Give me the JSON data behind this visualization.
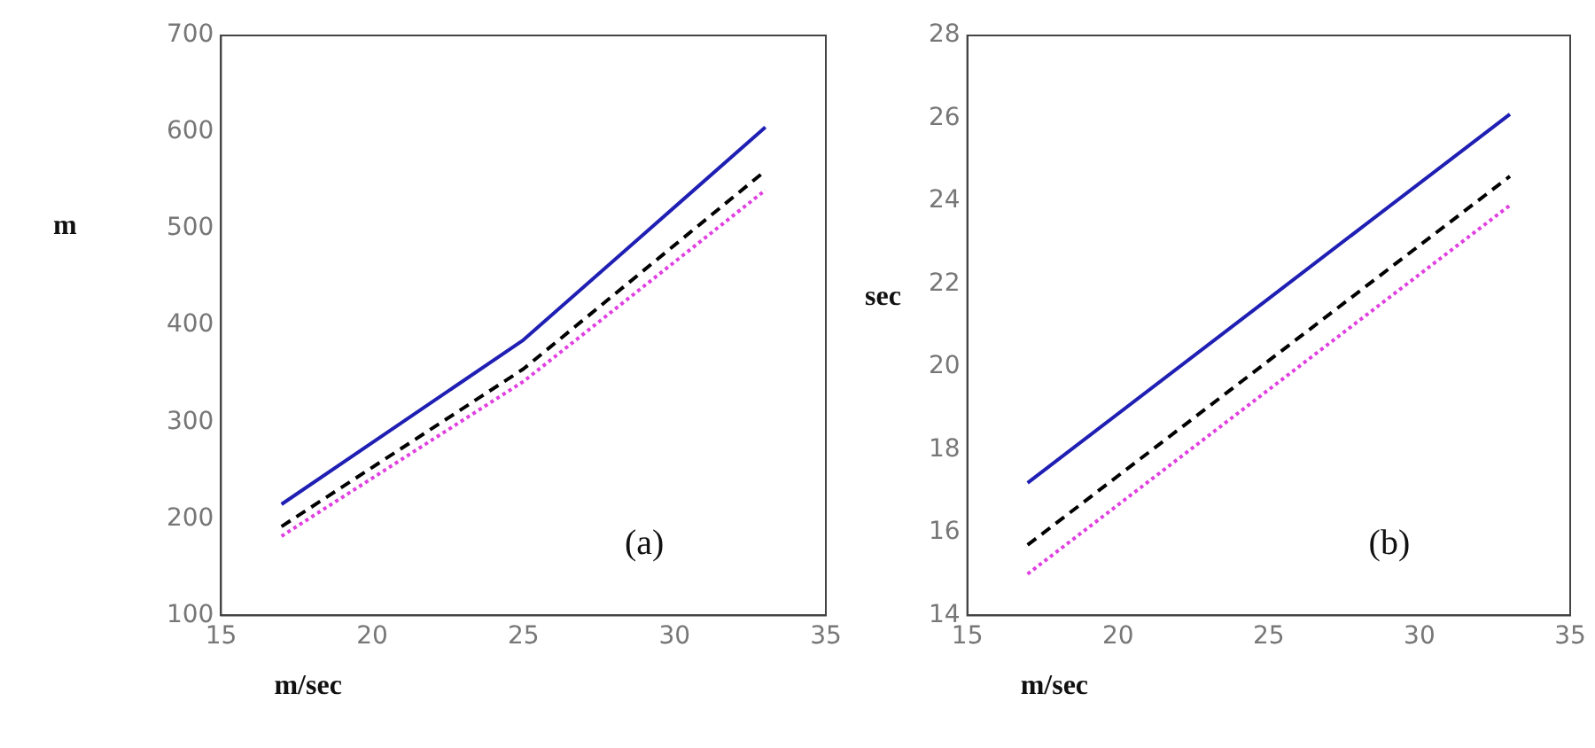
{
  "chart_data": [
    {
      "type": "line",
      "xlabel": "m/sec",
      "ylabel": "m",
      "annotations": [
        "(a)"
      ],
      "x": [
        17,
        25,
        33
      ],
      "xlim": [
        15,
        35
      ],
      "xticks": [
        15,
        20,
        25,
        30,
        35
      ],
      "ylim": [
        100,
        700
      ],
      "yticks": [
        100,
        200,
        300,
        400,
        500,
        600,
        700
      ],
      "grid": false,
      "legend": false,
      "marker": "none",
      "series": [
        {
          "color": "#1f1fb4",
          "line_style": "solid",
          "values": [
            215,
            385,
            605
          ]
        },
        {
          "color": "#000000",
          "line_style": "dashed",
          "values": [
            192,
            355,
            560
          ]
        },
        {
          "color": "#e040e0",
          "line_style": "dotted",
          "values": [
            182,
            342,
            540
          ]
        }
      ]
    },
    {
      "type": "line",
      "xlabel": "m/sec",
      "ylabel": "sec",
      "annotations": [
        "(b)"
      ],
      "x": [
        17,
        25,
        33
      ],
      "xlim": [
        15,
        35
      ],
      "xticks": [
        15,
        20,
        25,
        30,
        35
      ],
      "ylim": [
        14,
        28
      ],
      "yticks": [
        14,
        16,
        18,
        20,
        22,
        24,
        26,
        28
      ],
      "grid": false,
      "legend": false,
      "marker": "none",
      "series": [
        {
          "color": "#1f1fb4",
          "line_style": "solid",
          "values": [
            17.2,
            21.65,
            26.1
          ]
        },
        {
          "color": "#000000",
          "line_style": "dashed",
          "values": [
            15.7,
            20.15,
            24.6
          ]
        },
        {
          "color": "#e040e0",
          "line_style": "dotted",
          "values": [
            15.0,
            19.45,
            23.9
          ]
        }
      ]
    }
  ]
}
